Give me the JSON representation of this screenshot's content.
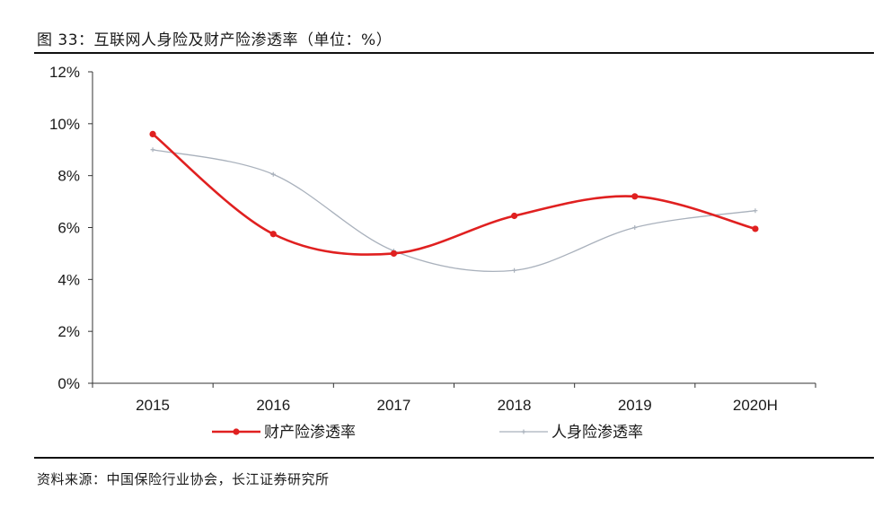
{
  "header": {
    "title": "图 33：互联网人身险及财产险渗透率（单位：%）"
  },
  "footer": {
    "source": "资料来源：中国保险行业协会，长江证券研究所"
  },
  "colors": {
    "property": "#e02020",
    "life": "#a9b1bc",
    "axis": "#333333"
  },
  "chart_data": {
    "type": "line",
    "title": "图 33：互联网人身险及财产险渗透率（单位：%）",
    "categories": [
      "2015",
      "2016",
      "2017",
      "2018",
      "2019",
      "2020H"
    ],
    "ylim": [
      0,
      12
    ],
    "yticks": [
      0,
      2,
      4,
      6,
      8,
      10,
      12
    ],
    "ytick_labels": [
      "0%",
      "2%",
      "4%",
      "6%",
      "8%",
      "10%",
      "12%"
    ],
    "grid": false,
    "legend": "bottom",
    "smooth": true,
    "series": [
      {
        "name": "财产险渗透率",
        "values": [
          9.6,
          5.75,
          5.0,
          6.45,
          7.2,
          5.95
        ],
        "color": "#e02020"
      },
      {
        "name": "人身险渗透率",
        "values": [
          9.0,
          8.05,
          5.1,
          4.35,
          6.0,
          6.65
        ],
        "color": "#a9b1bc"
      }
    ]
  }
}
